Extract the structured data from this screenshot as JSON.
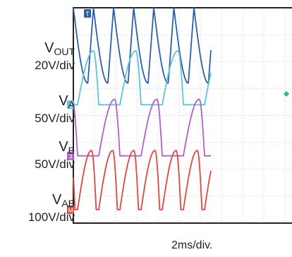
{
  "chart_data": {
    "type": "line",
    "x_unit": "ms",
    "time_per_div": "2ms/div.",
    "x_divisions": 10,
    "x_visible": [
      0,
      13.0
    ],
    "grid": true,
    "colors": {
      "background": "#ffffff",
      "frame": "#222222",
      "grid": "#c8c8c8"
    },
    "channels": [
      {
        "id": "vout",
        "name": "V",
        "subscript": "OUT",
        "scale": "20V/div",
        "marker": "T",
        "color": "#2d5fa8",
        "waveform": "rectified ripple",
        "period_ms": 1.9,
        "phase_ms": 0.0,
        "baseline_div": 0.0,
        "peak_div": 0.0,
        "trough_div": 2.8
      },
      {
        "id": "va",
        "name": "V",
        "subscript": "A",
        "scale": "50V/div",
        "marker": "2",
        "color": "#5cc6d6",
        "waveform": "half-wave pulse",
        "period_ms": 4.0,
        "phase_ms": 0.4,
        "baseline_div": 3.6,
        "peak_div": 1.6
      },
      {
        "id": "vb",
        "name": "V",
        "subscript": "B",
        "scale": "50V/div",
        "marker": "3",
        "color": "#b35fc6",
        "waveform": "half-wave pulse",
        "period_ms": 4.0,
        "phase_ms": 2.4,
        "baseline_div": 5.5,
        "peak_div": 3.4
      },
      {
        "id": "vab",
        "name": "V",
        "subscript": "AB",
        "scale": "100V/div",
        "marker": "M",
        "color": "#e0473f",
        "waveform": "full-wave pulse",
        "period_ms": 2.0,
        "phase_ms": 0.4,
        "baseline_div": 7.5,
        "peak_div": 5.3
      }
    ],
    "extra_markers": [
      {
        "shape": "diamond",
        "color": "#32b87a",
        "level_div": 3.2
      }
    ]
  }
}
